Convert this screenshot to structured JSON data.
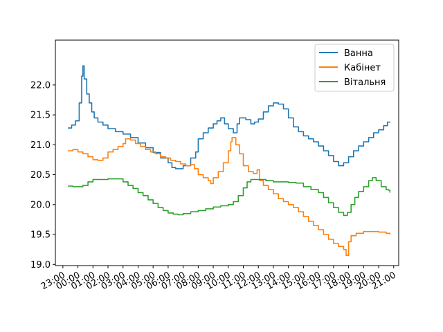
{
  "chart_data": {
    "type": "line",
    "title": "",
    "xlabel": "",
    "ylabel": "",
    "x_ticks": [
      "23:00",
      "00:00",
      "01:00",
      "02:00",
      "03:00",
      "04:00",
      "05:00",
      "06:00",
      "07:00",
      "08:00",
      "09:00",
      "10:00",
      "11:00",
      "12:00",
      "13:00",
      "14:00",
      "15:00",
      "16:00",
      "17:00",
      "18:00",
      "19:00",
      "20:00",
      "21:00"
    ],
    "xlim": [
      "22:30",
      "21:20"
    ],
    "ylim": [
      18.98,
      22.75
    ],
    "y_ticks": [
      19.0,
      19.5,
      20.0,
      20.5,
      21.0,
      21.5,
      22.0
    ],
    "grid": false,
    "legend_position": "top-right",
    "colors": {
      "Ванна": "#1f77b4",
      "Кабінет": "#ff7f0e",
      "Вітальня": "#2ca02c"
    },
    "series": [
      {
        "name": "Ванна",
        "points": [
          [
            "23:20",
            21.28
          ],
          [
            "23:35",
            21.33
          ],
          [
            "23:50",
            21.4
          ],
          [
            "00:05",
            21.7
          ],
          [
            "00:15",
            22.15
          ],
          [
            "00:20",
            22.32
          ],
          [
            "00:25",
            22.1
          ],
          [
            "00:35",
            21.85
          ],
          [
            "00:45",
            21.7
          ],
          [
            "00:55",
            21.55
          ],
          [
            "01:05",
            21.45
          ],
          [
            "01:20",
            21.38
          ],
          [
            "01:40",
            21.33
          ],
          [
            "02:00",
            21.27
          ],
          [
            "02:30",
            21.22
          ],
          [
            "03:00",
            21.18
          ],
          [
            "03:30",
            21.12
          ],
          [
            "04:00",
            21.03
          ],
          [
            "04:30",
            20.95
          ],
          [
            "05:00",
            20.87
          ],
          [
            "05:30",
            20.78
          ],
          [
            "06:00",
            20.7
          ],
          [
            "06:15",
            20.62
          ],
          [
            "06:30",
            20.6
          ],
          [
            "07:00",
            20.65
          ],
          [
            "07:30",
            20.78
          ],
          [
            "07:50",
            20.88
          ],
          [
            "08:00",
            21.1
          ],
          [
            "08:20",
            21.2
          ],
          [
            "08:40",
            21.28
          ],
          [
            "09:00",
            21.35
          ],
          [
            "09:15",
            21.4
          ],
          [
            "09:30",
            21.45
          ],
          [
            "09:45",
            21.35
          ],
          [
            "10:00",
            21.27
          ],
          [
            "10:20",
            21.2
          ],
          [
            "10:35",
            21.35
          ],
          [
            "10:45",
            21.45
          ],
          [
            "11:10",
            21.42
          ],
          [
            "11:30",
            21.35
          ],
          [
            "11:45",
            21.38
          ],
          [
            "12:00",
            21.43
          ],
          [
            "12:20",
            21.55
          ],
          [
            "12:40",
            21.65
          ],
          [
            "13:00",
            21.7
          ],
          [
            "13:20",
            21.68
          ],
          [
            "13:40",
            21.6
          ],
          [
            "14:00",
            21.45
          ],
          [
            "14:20",
            21.3
          ],
          [
            "14:40",
            21.22
          ],
          [
            "15:00",
            21.15
          ],
          [
            "15:20",
            21.1
          ],
          [
            "15:40",
            21.05
          ],
          [
            "16:00",
            20.98
          ],
          [
            "16:20",
            20.9
          ],
          [
            "16:40",
            20.82
          ],
          [
            "17:00",
            20.72
          ],
          [
            "17:20",
            20.65
          ],
          [
            "17:40",
            20.7
          ],
          [
            "18:00",
            20.8
          ],
          [
            "18:20",
            20.9
          ],
          [
            "18:40",
            20.98
          ],
          [
            "19:00",
            21.05
          ],
          [
            "19:20",
            21.12
          ],
          [
            "19:40",
            21.2
          ],
          [
            "20:00",
            21.25
          ],
          [
            "20:20",
            21.32
          ],
          [
            "20:35",
            21.38
          ],
          [
            "20:45",
            21.37
          ]
        ]
      },
      {
        "name": "Кабінет",
        "points": [
          [
            "23:20",
            20.9
          ],
          [
            "23:40",
            20.92
          ],
          [
            "00:00",
            20.88
          ],
          [
            "00:20",
            20.85
          ],
          [
            "00:40",
            20.8
          ],
          [
            "01:00",
            20.75
          ],
          [
            "01:20",
            20.74
          ],
          [
            "01:40",
            20.78
          ],
          [
            "02:00",
            20.88
          ],
          [
            "02:20",
            20.92
          ],
          [
            "02:40",
            20.97
          ],
          [
            "03:00",
            21.02
          ],
          [
            "03:10",
            21.1
          ],
          [
            "03:30",
            21.08
          ],
          [
            "03:50",
            21.02
          ],
          [
            "04:10",
            20.97
          ],
          [
            "04:30",
            20.92
          ],
          [
            "04:50",
            20.88
          ],
          [
            "05:10",
            20.85
          ],
          [
            "05:30",
            20.8
          ],
          [
            "05:50",
            20.78
          ],
          [
            "06:10",
            20.74
          ],
          [
            "06:30",
            20.72
          ],
          [
            "06:50",
            20.68
          ],
          [
            "07:10",
            20.65
          ],
          [
            "07:30",
            20.67
          ],
          [
            "07:45",
            20.6
          ],
          [
            "08:00",
            20.5
          ],
          [
            "08:20",
            20.45
          ],
          [
            "08:40",
            20.4
          ],
          [
            "08:50",
            20.35
          ],
          [
            "09:00",
            20.45
          ],
          [
            "09:20",
            20.55
          ],
          [
            "09:40",
            20.7
          ],
          [
            "10:00",
            20.9
          ],
          [
            "10:10",
            21.05
          ],
          [
            "10:15",
            21.12
          ],
          [
            "10:30",
            21.0
          ],
          [
            "10:45",
            20.85
          ],
          [
            "11:00",
            20.65
          ],
          [
            "11:20",
            20.55
          ],
          [
            "11:40",
            20.52
          ],
          [
            "11:55",
            20.58
          ],
          [
            "12:05",
            20.4
          ],
          [
            "12:20",
            20.32
          ],
          [
            "12:40",
            20.25
          ],
          [
            "13:00",
            20.18
          ],
          [
            "13:20",
            20.1
          ],
          [
            "13:40",
            20.05
          ],
          [
            "14:00",
            20.0
          ],
          [
            "14:20",
            19.95
          ],
          [
            "14:40",
            19.88
          ],
          [
            "15:00",
            19.8
          ],
          [
            "15:20",
            19.72
          ],
          [
            "15:40",
            19.65
          ],
          [
            "16:00",
            19.58
          ],
          [
            "16:20",
            19.5
          ],
          [
            "16:40",
            19.42
          ],
          [
            "17:00",
            19.35
          ],
          [
            "17:20",
            19.3
          ],
          [
            "17:40",
            19.25
          ],
          [
            "17:50",
            19.15
          ],
          [
            "18:00",
            19.38
          ],
          [
            "18:10",
            19.48
          ],
          [
            "18:30",
            19.52
          ],
          [
            "19:00",
            19.55
          ],
          [
            "19:30",
            19.55
          ],
          [
            "20:00",
            19.54
          ],
          [
            "20:30",
            19.52
          ],
          [
            "20:45",
            19.5
          ]
        ]
      },
      {
        "name": "Вітальня",
        "points": [
          [
            "23:20",
            20.31
          ],
          [
            "23:40",
            20.3
          ],
          [
            "00:00",
            20.3
          ],
          [
            "00:20",
            20.32
          ],
          [
            "00:40",
            20.38
          ],
          [
            "01:00",
            20.42
          ],
          [
            "01:30",
            20.42
          ],
          [
            "02:00",
            20.43
          ],
          [
            "02:30",
            20.43
          ],
          [
            "03:00",
            20.38
          ],
          [
            "03:20",
            20.32
          ],
          [
            "03:40",
            20.27
          ],
          [
            "04:00",
            20.2
          ],
          [
            "04:20",
            20.15
          ],
          [
            "04:40",
            20.08
          ],
          [
            "05:00",
            20.02
          ],
          [
            "05:20",
            19.95
          ],
          [
            "05:40",
            19.9
          ],
          [
            "06:00",
            19.86
          ],
          [
            "06:20",
            19.84
          ],
          [
            "06:40",
            19.83
          ],
          [
            "07:00",
            19.85
          ],
          [
            "07:30",
            19.88
          ],
          [
            "08:00",
            19.9
          ],
          [
            "08:30",
            19.93
          ],
          [
            "09:00",
            19.96
          ],
          [
            "09:30",
            19.98
          ],
          [
            "10:00",
            20.0
          ],
          [
            "10:20",
            20.05
          ],
          [
            "10:40",
            20.15
          ],
          [
            "11:00",
            20.28
          ],
          [
            "11:15",
            20.38
          ],
          [
            "11:30",
            20.42
          ],
          [
            "12:00",
            20.42
          ],
          [
            "12:30",
            20.4
          ],
          [
            "13:00",
            20.38
          ],
          [
            "13:30",
            20.38
          ],
          [
            "14:00",
            20.37
          ],
          [
            "14:30",
            20.36
          ],
          [
            "15:00",
            20.3
          ],
          [
            "15:30",
            20.25
          ],
          [
            "16:00",
            20.2
          ],
          [
            "16:20",
            20.12
          ],
          [
            "16:40",
            20.03
          ],
          [
            "17:00",
            19.95
          ],
          [
            "17:20",
            19.87
          ],
          [
            "17:40",
            19.82
          ],
          [
            "17:55",
            19.87
          ],
          [
            "18:10",
            20.0
          ],
          [
            "18:25",
            20.12
          ],
          [
            "18:40",
            20.22
          ],
          [
            "19:00",
            20.3
          ],
          [
            "19:20",
            20.4
          ],
          [
            "19:35",
            20.45
          ],
          [
            "19:50",
            20.4
          ],
          [
            "20:10",
            20.3
          ],
          [
            "20:30",
            20.25
          ],
          [
            "20:40",
            20.24
          ],
          [
            "20:45",
            20.2
          ]
        ]
      }
    ]
  }
}
